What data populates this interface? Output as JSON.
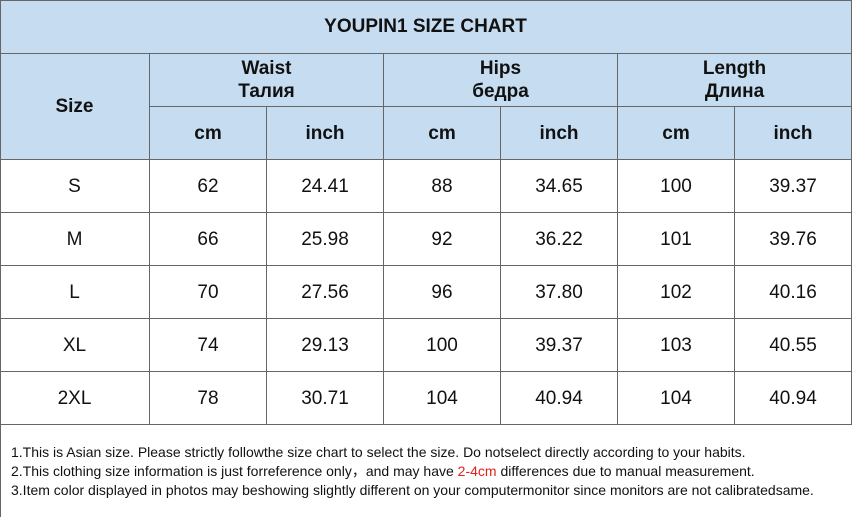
{
  "header": {
    "title": "YOUPIN1 SIZE CHART"
  },
  "table": {
    "size_header": "Size",
    "groups": [
      {
        "name": "Waist",
        "name_ru": "Талия"
      },
      {
        "name": "Hips",
        "name_ru": "бедра"
      },
      {
        "name": "Length",
        "name_ru": "Длина"
      }
    ],
    "units": [
      "cm",
      "inch"
    ],
    "rows": [
      [
        "S",
        "62",
        "24.41",
        "88",
        "34.65",
        "100",
        "39.37"
      ],
      [
        "M",
        "66",
        "25.98",
        "92",
        "36.22",
        "101",
        "39.76"
      ],
      [
        "L",
        "70",
        "27.56",
        "96",
        "37.80",
        "102",
        "40.16"
      ],
      [
        "XL",
        "74",
        "29.13",
        "100",
        "39.37",
        "103",
        "40.55"
      ],
      [
        "2XL",
        "78",
        "30.71",
        "104",
        "40.94",
        "104",
        "40.94"
      ]
    ]
  },
  "notes": [
    "1.This is Asian size. Please strictly followthe size chart to select the size. Do notselect directly according to your habits.",
    {
      "before": "2.This clothing size information is just forreference only，and may have ",
      "highlight": "2-4cm",
      "after": " differences due to manual measurement."
    },
    "3.Item color displayed in photos may beshowing slightly different on your computermonitor since monitors are not calibratedsame."
  ]
}
